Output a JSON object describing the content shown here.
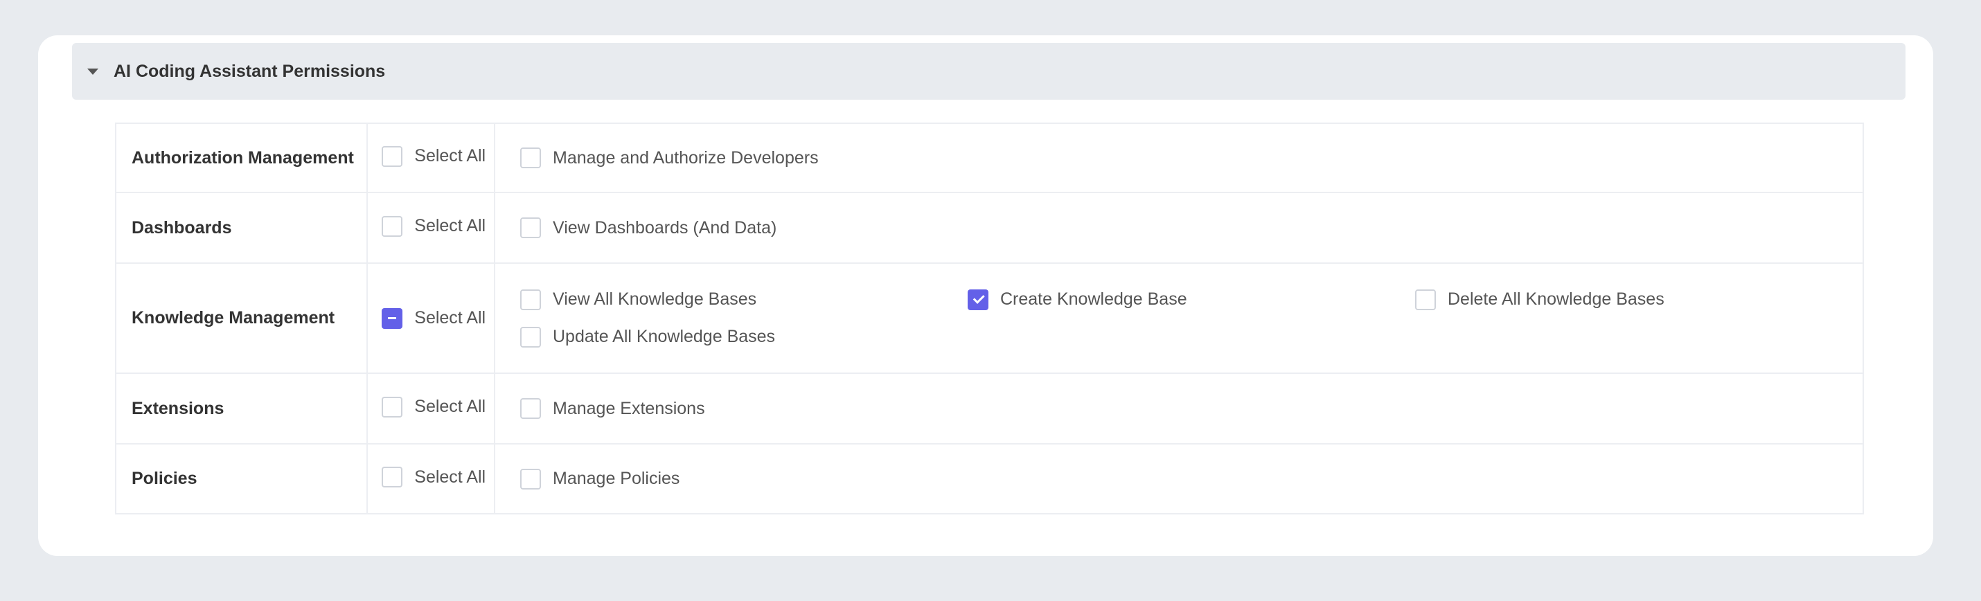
{
  "section": {
    "title": "AI Coding Assistant Permissions",
    "expanded": true
  },
  "accent_color": "#6360e8",
  "rows": [
    {
      "category": "Authorization Management",
      "select_all": {
        "label": "Select All",
        "state": "unchecked"
      },
      "options": [
        {
          "label": "Manage and Authorize Developers",
          "checked": false
        }
      ]
    },
    {
      "category": "Dashboards",
      "select_all": {
        "label": "Select All",
        "state": "unchecked"
      },
      "options": [
        {
          "label": "View Dashboards (And Data)",
          "checked": false
        }
      ]
    },
    {
      "category": "Knowledge Management",
      "select_all": {
        "label": "Select All",
        "state": "indeterminate"
      },
      "options": [
        {
          "label": "View All Knowledge Bases",
          "checked": false
        },
        {
          "label": "Create Knowledge Base",
          "checked": true
        },
        {
          "label": "Delete All Knowledge Bases",
          "checked": false
        },
        {
          "label": "Update All Knowledge Bases",
          "checked": false
        }
      ]
    },
    {
      "category": "Extensions",
      "select_all": {
        "label": "Select All",
        "state": "unchecked"
      },
      "options": [
        {
          "label": "Manage Extensions",
          "checked": false
        }
      ]
    },
    {
      "category": "Policies",
      "select_all": {
        "label": "Select All",
        "state": "unchecked"
      },
      "options": [
        {
          "label": "Manage Policies",
          "checked": false
        }
      ]
    }
  ]
}
